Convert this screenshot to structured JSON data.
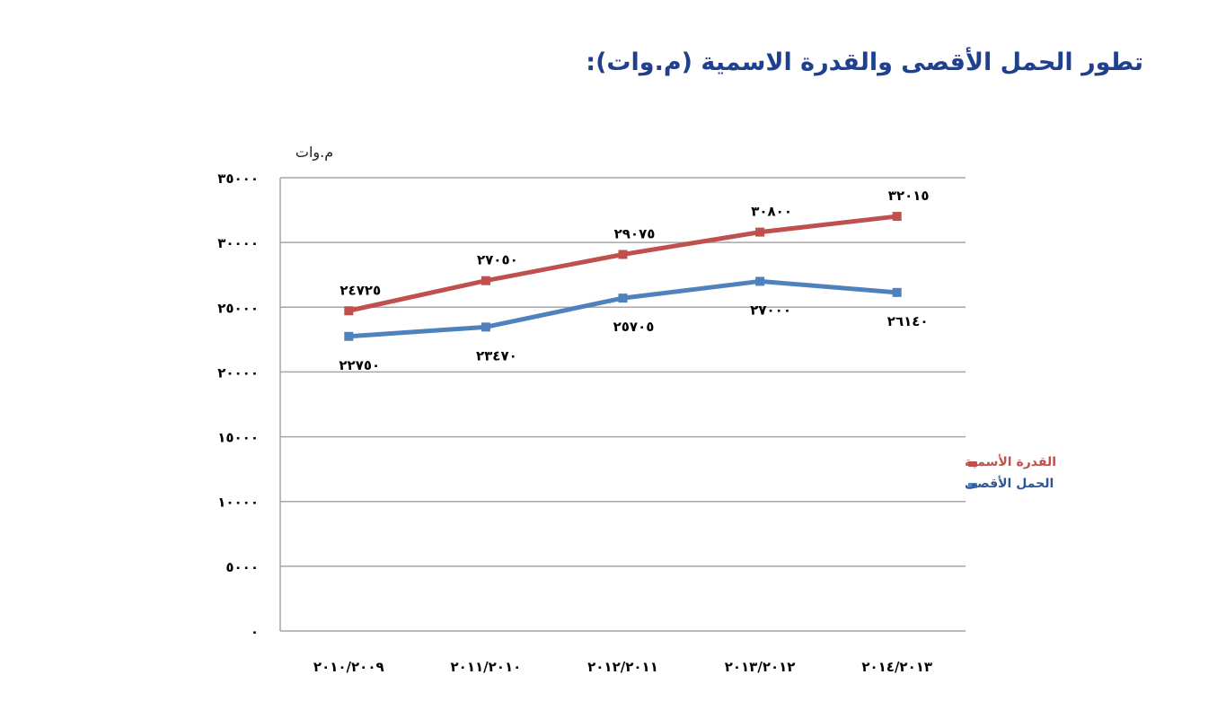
{
  "title": "تطور الحمل الأقصى والقدرة الاسمية (م.وات):",
  "chart_data": {
    "type": "line",
    "title": "تطور الحمل الأقصى والقدرة الاسمية (م.وات):",
    "ylabel": "م.وات",
    "xlabel": "",
    "ylim": [
      0,
      35000
    ],
    "grid": true,
    "legend_position": "right",
    "categories": [
      "٢٠١٠/٢٠٠٩",
      "٢٠١١/٢٠١٠",
      "٢٠١٢/٢٠١١",
      "٢٠١٣/٢٠١٢",
      "٢٠١٤/٢٠١٣"
    ],
    "categories_latin": [
      "2010/2009",
      "2011/2010",
      "2012/2011",
      "2013/2012",
      "2014/2013"
    ],
    "yticks": [
      0,
      5000,
      10000,
      15000,
      20000,
      25000,
      30000,
      35000
    ],
    "ytick_labels": [
      "٠",
      "٥٠٠٠",
      "١٠٠٠٠",
      "١٥٠٠٠",
      "٢٠٠٠٠",
      "٢٥٠٠٠",
      "٣٠٠٠٠",
      "٣٥٠٠٠"
    ],
    "series": [
      {
        "name": "القدرة الأسمية",
        "color": "#c0504d",
        "values": [
          24725,
          27050,
          29075,
          30800,
          32015
        ],
        "labels": [
          "٢٤٧٢٥",
          "٢٧٠٥٠",
          "٢٩٠٧٥",
          "٣٠٨٠٠",
          "٣٢٠١٥"
        ]
      },
      {
        "name": "الحمل الأقصى",
        "color": "#4f81bd",
        "values": [
          22750,
          23470,
          25705,
          27000,
          26140
        ],
        "labels": [
          "٢٢٧٥٠",
          "٢٣٤٧٠",
          "٢٥٧٠٥",
          "٢٧٠٠٠",
          "٢٦١٤٠"
        ]
      }
    ]
  },
  "legend": {
    "items": [
      {
        "label": "القدرة الأسمية",
        "color": "#c0504d",
        "text_color": "#c0504d"
      },
      {
        "label": "الحمل الأقصى",
        "color": "#4f81bd",
        "text_color": "#2f5597"
      }
    ]
  },
  "colors": {
    "title": "#1f3f8f",
    "grid": "#a6a6a6",
    "axis": "#a6a6a6"
  }
}
